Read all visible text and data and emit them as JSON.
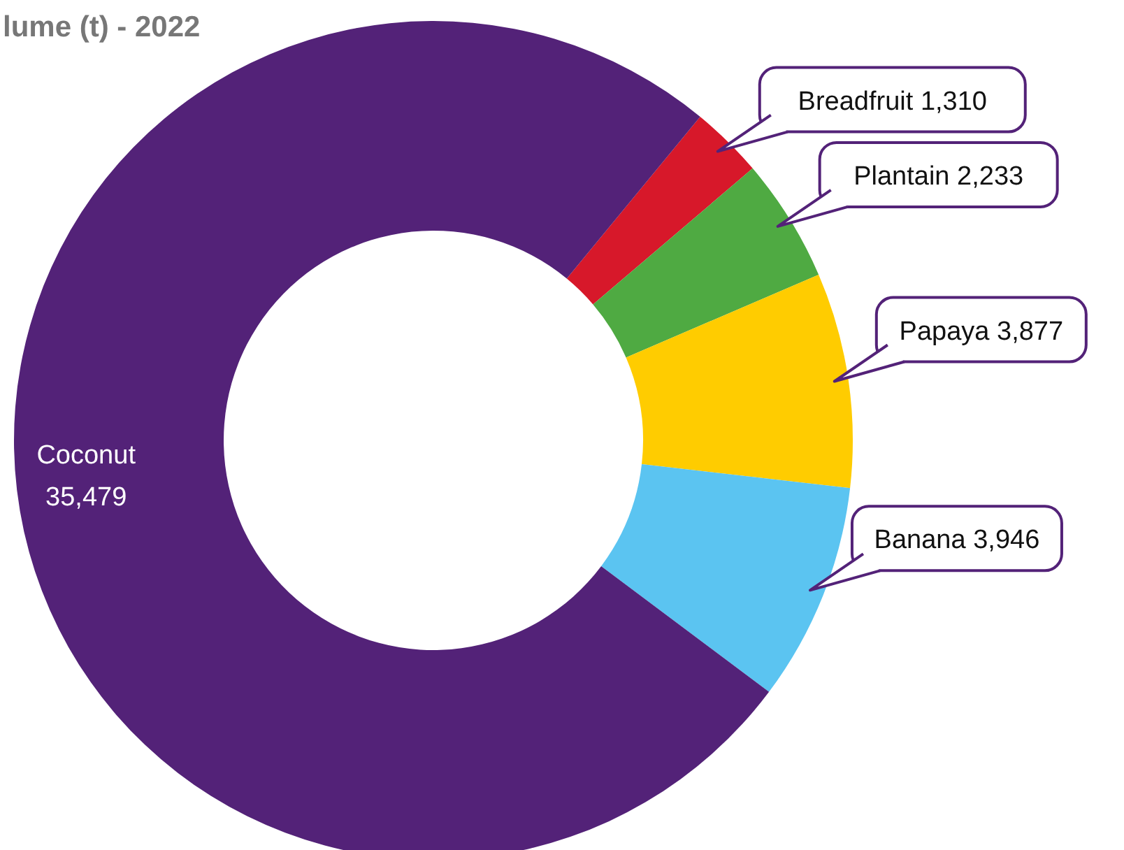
{
  "chart_data": {
    "type": "donut",
    "title": "lume (t) - 2022",
    "categories": [
      "Breadfruit",
      "Plantain",
      "Papaya",
      "Banana",
      "Coconut"
    ],
    "values": [
      1310,
      2233,
      3877,
      3946,
      35479
    ],
    "value_labels": [
      "1,310",
      "2,233",
      "3,877",
      "3,946",
      "35,479"
    ],
    "colors": [
      "#d7182a",
      "#4faa42",
      "#ffcc00",
      "#5bc4f1",
      "#532278"
    ]
  }
}
